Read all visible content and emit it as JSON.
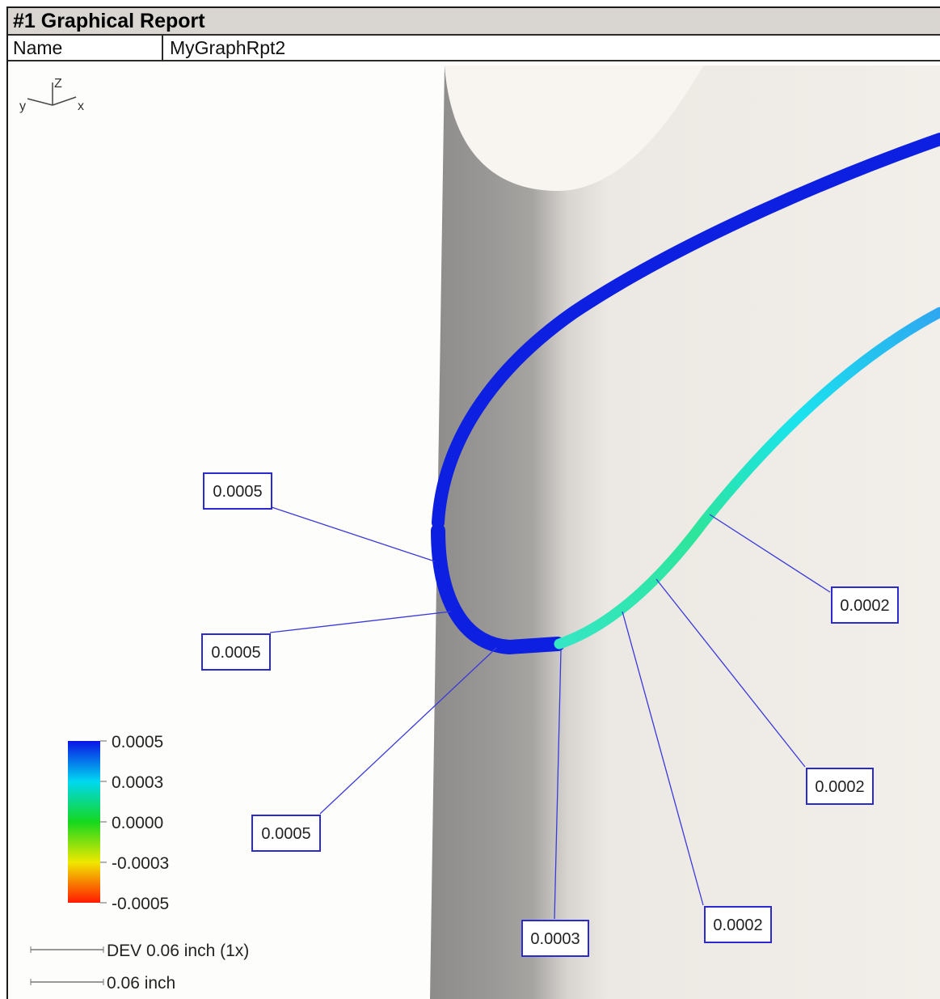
{
  "report": {
    "title": "#1  Graphical Report",
    "name_label": "Name",
    "name_value": "MyGraphRpt2"
  },
  "axes_triad": {
    "z": "Z",
    "y": "y",
    "x": "x"
  },
  "annotations": [
    {
      "id": "a1",
      "value": "0.0005"
    },
    {
      "id": "a2",
      "value": "0.0005"
    },
    {
      "id": "a3",
      "value": "0.0005"
    },
    {
      "id": "a4",
      "value": "0.0003"
    },
    {
      "id": "a5",
      "value": "0.0002"
    },
    {
      "id": "a6",
      "value": "0.0002"
    },
    {
      "id": "a7",
      "value": "0.0002"
    }
  ],
  "legend": {
    "ticks": [
      "0.0005",
      "0.0003",
      "0.0000",
      "-0.0003",
      "-0.0005"
    ],
    "colors": [
      "#0a14e6",
      "#00d8f0",
      "#14d81e",
      "#f0e800",
      "#ff1a00"
    ]
  },
  "scale": {
    "dev_label": "DEV 0.06 inch (1x)",
    "length_label": "0.06 inch"
  },
  "colors": {
    "curve_outer": "#0d1fe0",
    "curve_inner_start": "#0d1fe0",
    "curve_inner_teal": "#33e8c8",
    "curve_inner_green": "#2fe89a",
    "curve_inner_cyan": "#19e3f2",
    "curve_inner_end": "#2aa9f0",
    "leader": "#3a3ad8",
    "box_border": "#2a2ad0",
    "part_face": "#f0ece7",
    "part_shadow": "#8f8d8b"
  }
}
